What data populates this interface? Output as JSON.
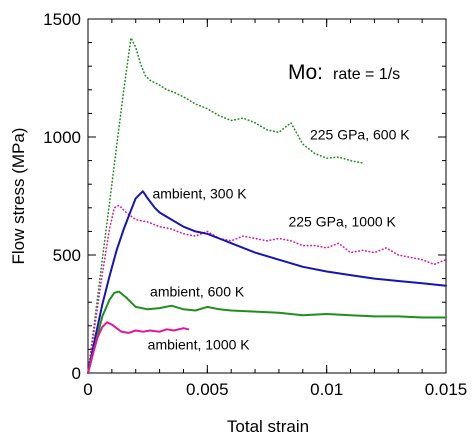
{
  "chart_data": {
    "type": "line",
    "title_main": "Mo:",
    "title_sub": "rate = 1/s",
    "xlabel": "Total strain",
    "ylabel": "Flow stress (MPa)",
    "xlim": [
      0,
      0.015
    ],
    "ylim": [
      0,
      1500
    ],
    "x_ticks": [
      {
        "value": 0,
        "label": "0"
      },
      {
        "value": 0.005,
        "label": "0.005"
      },
      {
        "value": 0.01,
        "label": "0.01"
      },
      {
        "value": 0.015,
        "label": "0.015"
      }
    ],
    "y_ticks": [
      {
        "value": 0,
        "label": "0"
      },
      {
        "value": 500,
        "label": "500"
      },
      {
        "value": 1000,
        "label": "1000"
      },
      {
        "value": 1500,
        "label": "1500"
      }
    ],
    "series": [
      {
        "name": "225 GPa, 600 K",
        "color": "#1e8f1e",
        "dash": "dotted",
        "x": [
          0,
          0.0003,
          0.0006,
          0.0009,
          0.0012,
          0.0015,
          0.0018,
          0.002,
          0.0022,
          0.0024,
          0.0026,
          0.0028,
          0.003,
          0.0033,
          0.0036,
          0.004,
          0.0045,
          0.005,
          0.0055,
          0.006,
          0.0065,
          0.007,
          0.0075,
          0.008,
          0.0085,
          0.009,
          0.0095,
          0.01,
          0.0105,
          0.011,
          0.0115
        ],
        "y": [
          0,
          240,
          480,
          720,
          960,
          1200,
          1420,
          1380,
          1310,
          1260,
          1240,
          1230,
          1220,
          1200,
          1190,
          1170,
          1140,
          1120,
          1090,
          1070,
          1080,
          1060,
          1030,
          1020,
          1060,
          970,
          930,
          910,
          915,
          900,
          890
        ]
      },
      {
        "name": "225 GPa, 1000 K",
        "color": "#e0179b",
        "dash": "dotted",
        "x": [
          0,
          0.0003,
          0.0006,
          0.0009,
          0.0011,
          0.0013,
          0.0016,
          0.002,
          0.0025,
          0.003,
          0.0035,
          0.004,
          0.0045,
          0.005,
          0.0055,
          0.006,
          0.0065,
          0.007,
          0.0075,
          0.008,
          0.0085,
          0.009,
          0.0095,
          0.01,
          0.0105,
          0.011,
          0.0115,
          0.012,
          0.0125,
          0.013,
          0.0135,
          0.014,
          0.0145,
          0.015
        ],
        "y": [
          0,
          210,
          420,
          610,
          700,
          710,
          680,
          650,
          640,
          620,
          610,
          590,
          580,
          600,
          570,
          560,
          580,
          570,
          560,
          570,
          560,
          540,
          540,
          530,
          550,
          510,
          520,
          510,
          530,
          500,
          490,
          480,
          460,
          480
        ]
      },
      {
        "name": "ambient, 300 K",
        "color": "#1515b5",
        "dash": "solid",
        "x": [
          0,
          0.0003,
          0.0006,
          0.0009,
          0.0012,
          0.0015,
          0.0018,
          0.002,
          0.0022,
          0.0023,
          0.0025,
          0.0028,
          0.003,
          0.0035,
          0.004,
          0.0045,
          0.005,
          0.0055,
          0.006,
          0.007,
          0.008,
          0.009,
          0.01,
          0.011,
          0.012,
          0.013,
          0.014,
          0.015
        ],
        "y": [
          0,
          150,
          290,
          410,
          520,
          610,
          690,
          740,
          760,
          770,
          740,
          700,
          680,
          650,
          620,
          600,
          590,
          570,
          550,
          510,
          480,
          450,
          430,
          415,
          400,
          390,
          380,
          370
        ]
      },
      {
        "name": "ambient, 600 K",
        "color": "#1e8f1e",
        "dash": "solid",
        "x": [
          0,
          0.0003,
          0.0006,
          0.0009,
          0.0011,
          0.0013,
          0.0016,
          0.002,
          0.0025,
          0.003,
          0.0035,
          0.004,
          0.0045,
          0.005,
          0.0055,
          0.006,
          0.007,
          0.008,
          0.009,
          0.01,
          0.011,
          0.012,
          0.013,
          0.014,
          0.015
        ],
        "y": [
          0,
          120,
          240,
          310,
          340,
          345,
          320,
          280,
          270,
          275,
          285,
          270,
          265,
          280,
          270,
          265,
          260,
          255,
          245,
          250,
          245,
          240,
          240,
          235,
          235
        ]
      },
      {
        "name": "ambient, 1000 K",
        "color": "#e0179b",
        "dash": "solid",
        "x": [
          0,
          0.0002,
          0.0004,
          0.0006,
          0.0008,
          0.001,
          0.0012,
          0.0014,
          0.0017,
          0.002,
          0.0023,
          0.0026,
          0.003,
          0.0033,
          0.0036,
          0.004,
          0.0042
        ],
        "y": [
          0,
          80,
          150,
          195,
          215,
          205,
          190,
          175,
          170,
          180,
          175,
          180,
          175,
          185,
          180,
          190,
          185
        ]
      }
    ],
    "annotations": [
      {
        "text": "225 GPa, 600 K",
        "x": 0.0093,
        "y": 990
      },
      {
        "text": "ambient, 300 K",
        "x": 0.0027,
        "y": 740
      },
      {
        "text": "225 GPa, 1000 K",
        "x": 0.0084,
        "y": 620
      },
      {
        "text": "ambient, 600 K",
        "x": 0.0026,
        "y": 325
      },
      {
        "text": "ambient, 1000 K",
        "x": 0.0025,
        "y": 100
      }
    ]
  }
}
